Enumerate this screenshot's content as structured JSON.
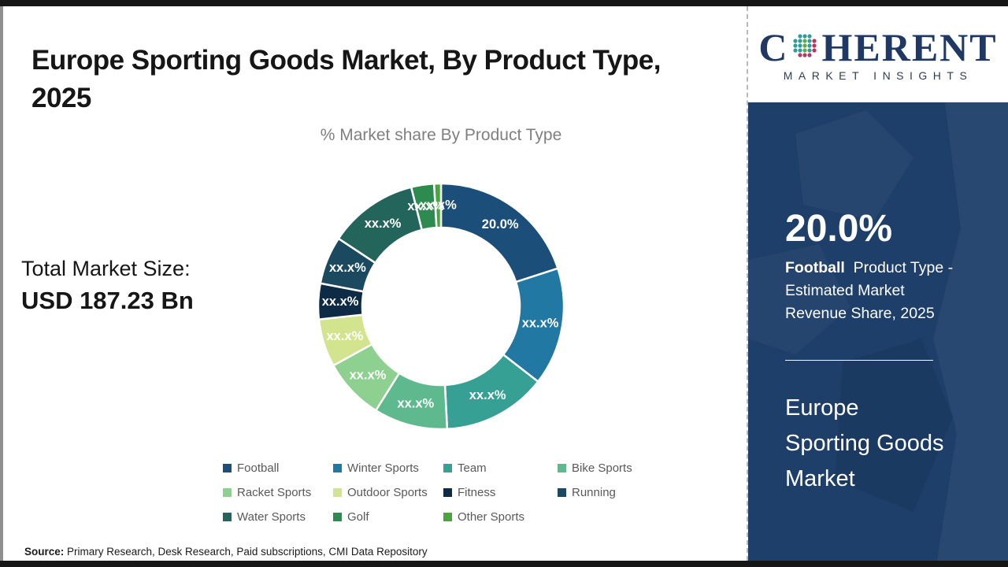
{
  "page": {
    "title_lines": [
      "Europe Sporting Goods Market, By Product Type,",
      "2025"
    ],
    "total_market_label": "Total Market Size:",
    "total_market_value": "USD 187.23 Bn",
    "source_label": "Source:",
    "source_text": " Primary Research, Desk Research, Paid subscriptions, CMI Data Repository"
  },
  "logo": {
    "name_prefix": "C",
    "name_suffix": "HERENT",
    "tagline": "MARKET INSIGHTS"
  },
  "sidebar": {
    "background_color": "#1e3f6a",
    "highlight_value": "20.0%",
    "highlight_segment": "Football",
    "highlight_line1_rest": "  Product Type -",
    "highlight_line2": "Estimated Market",
    "highlight_line3": "Revenue Share, 2025",
    "market_lines": [
      "Europe",
      "Sporting Goods",
      "Market"
    ]
  },
  "chart_data": {
    "type": "pie",
    "variant": "donut",
    "title": "% Market share By Product Type",
    "legend_position": "bottom",
    "start_angle_deg": 0,
    "clockwise": true,
    "segments": [
      {
        "label": "Football",
        "value": 20.0,
        "display": "20.0%",
        "color": "#1b4f7a"
      },
      {
        "label": "Winter Sports",
        "value": 15.5,
        "display": "xx.x%",
        "color": "#2178a3"
      },
      {
        "label": "Team",
        "value": 13.7,
        "display": "xx.x%",
        "color": "#35a093"
      },
      {
        "label": "Bike Sports",
        "value": 9.7,
        "display": "xx.x%",
        "color": "#5fb98e"
      },
      {
        "label": "Racket Sports",
        "value": 8.1,
        "display": "xx.x%",
        "color": "#8ed08f"
      },
      {
        "label": "Outdoor Sports",
        "value": 6.3,
        "display": "xx.x%",
        "color": "#d3e48f"
      },
      {
        "label": "Fitness",
        "value": 4.7,
        "display": "xx.x%",
        "color": "#0e2b45"
      },
      {
        "label": "Running",
        "value": 6.3,
        "display": "xx.x%",
        "color": "#1b4a60"
      },
      {
        "label": "Water Sports",
        "value": 11.8,
        "display": "xx.x%",
        "color": "#23655a"
      },
      {
        "label": "Golf",
        "value": 3.0,
        "display": "xx.x%",
        "color": "#2e8b4f"
      },
      {
        "label": "Other Sports",
        "value": 0.9,
        "display": "xx.x%",
        "color": "#4aa63c"
      }
    ]
  }
}
